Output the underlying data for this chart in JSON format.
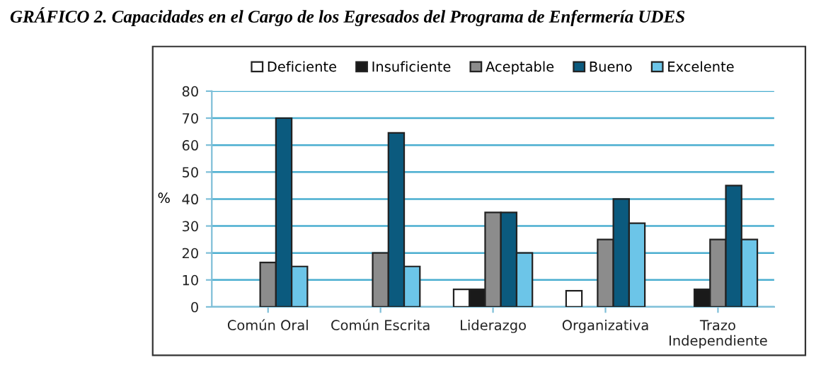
{
  "chart_data": {
    "type": "bar",
    "title": "GRÁFICO 2. Capacidades en el Cargo de los Egresados del Programa de Enfermería UDES",
    "ylabel": "%",
    "categories": [
      "Común Oral",
      "Común Escrita",
      "Liderazgo",
      "Organizativa",
      "Trazo\nIndependiente"
    ],
    "series": [
      {
        "name": "Deficiente",
        "color": "#ffffff",
        "values": [
          0,
          0,
          6.5,
          6,
          0
        ]
      },
      {
        "name": "Insuficiente",
        "color": "#1a1a1a",
        "values": [
          0,
          0,
          6.5,
          0,
          6.5
        ]
      },
      {
        "name": "Aceptable",
        "color": "#8c8c8c",
        "values": [
          16.5,
          20,
          35,
          25,
          25
        ]
      },
      {
        "name": "Bueno",
        "color": "#0b5a7e",
        "values": [
          70,
          64.5,
          35,
          40,
          45
        ]
      },
      {
        "name": "Excelente",
        "color": "#6cc5e8",
        "values": [
          15,
          15,
          20,
          31,
          25
        ]
      }
    ],
    "ylim": [
      0,
      80
    ],
    "yticks": [
      0,
      10,
      20,
      30,
      40,
      50,
      60,
      70,
      80
    ],
    "grid": "y",
    "legend": "top"
  }
}
